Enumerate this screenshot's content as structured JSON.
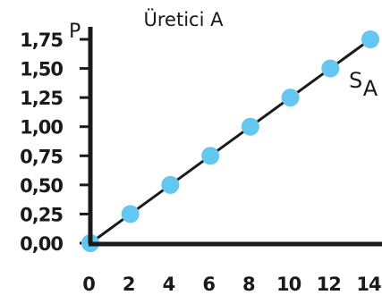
{
  "chart_data": {
    "type": "scatter",
    "title": "Üretici A",
    "ylabel": "P",
    "xlabel": "",
    "series_label": "S",
    "series_label_sub": "A",
    "x_ticks": [
      "0",
      "2",
      "4",
      "6",
      "8",
      "10",
      "12",
      "14"
    ],
    "y_ticks": [
      "0,00",
      "0,25",
      "0,50",
      "0,75",
      "1,00",
      "1,25",
      "1,50",
      "1,75"
    ],
    "xlim": [
      0,
      14
    ],
    "ylim": [
      0,
      1.75
    ],
    "grid": false,
    "colors": {
      "point": "#63c7ef",
      "line": "#1a1a1a",
      "axis": "#1a1a1a"
    },
    "series": [
      {
        "points": [
          {
            "x": 0,
            "y": 0
          },
          {
            "x": 2,
            "y": 0.25
          },
          {
            "x": 4,
            "y": 0.5
          },
          {
            "x": 6,
            "y": 0.75
          },
          {
            "x": 8,
            "y": 1.0
          },
          {
            "x": 10,
            "y": 1.25
          },
          {
            "x": 12,
            "y": 1.5
          },
          {
            "x": 14,
            "y": 1.75
          }
        ]
      }
    ]
  }
}
